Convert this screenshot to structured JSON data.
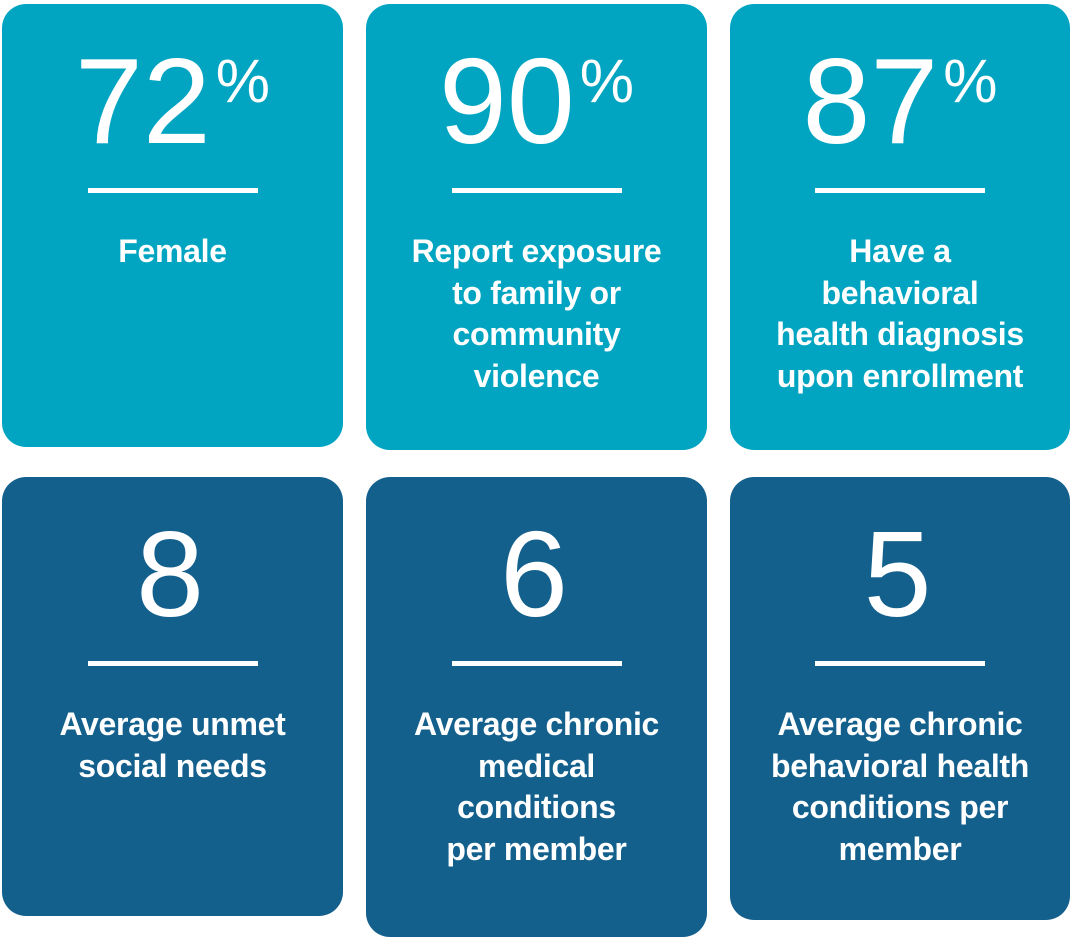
{
  "colors": {
    "teal": "#02a5c1",
    "blue": "#14608d",
    "text": "#ffffff",
    "background": "#ffffff"
  },
  "cards": [
    {
      "value": "72",
      "suffix": "%",
      "label": "Female"
    },
    {
      "value": "90",
      "suffix": "%",
      "label": "Report exposure\nto family or\ncommunity\nviolence"
    },
    {
      "value": "87",
      "suffix": "%",
      "label": "Have a\nbehavioral\nhealth diagnosis\nupon enrollment"
    },
    {
      "value": "8",
      "suffix": "",
      "label": "Average unmet\nsocial needs"
    },
    {
      "value": "6",
      "suffix": "",
      "label": "Average chronic\nmedical\nconditions\nper member"
    },
    {
      "value": "5",
      "suffix": "",
      "label": "Average chronic\nbehavioral health\nconditions per\nmember"
    }
  ],
  "chart_data": {
    "type": "table",
    "title": "",
    "items": [
      {
        "value": 72,
        "unit": "%",
        "label": "Female"
      },
      {
        "value": 90,
        "unit": "%",
        "label": "Report exposure to family or community violence"
      },
      {
        "value": 87,
        "unit": "%",
        "label": "Have a behavioral health diagnosis upon enrollment"
      },
      {
        "value": 8,
        "unit": "",
        "label": "Average unmet social needs"
      },
      {
        "value": 6,
        "unit": "",
        "label": "Average chronic medical conditions per member"
      },
      {
        "value": 5,
        "unit": "",
        "label": "Average chronic behavioral health conditions per member"
      }
    ],
    "layout_hints": {
      "grid": "3x2",
      "top_row_color": "#02a5c1",
      "bottom_row_color": "#14608d"
    }
  }
}
